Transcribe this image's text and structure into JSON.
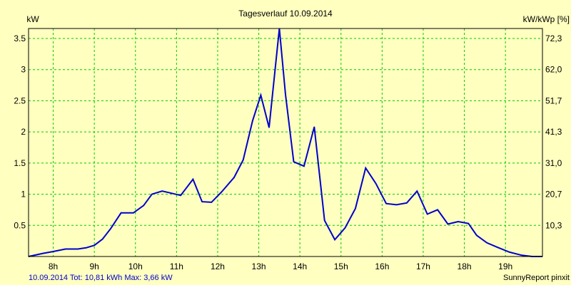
{
  "chart_data": {
    "type": "line",
    "title": "Tagesverlauf 10.09.2014",
    "ylabel": "kW",
    "y2label": "kW/kWp [%]",
    "xlim": [
      7.4,
      19.9
    ],
    "ylim": [
      0,
      3.66
    ],
    "x_ticks": [
      {
        "value": 8,
        "label": "8h"
      },
      {
        "value": 9,
        "label": "9h"
      },
      {
        "value": 10,
        "label": "10h"
      },
      {
        "value": 11,
        "label": "11h"
      },
      {
        "value": 12,
        "label": "12h"
      },
      {
        "value": 13,
        "label": "13h"
      },
      {
        "value": 14,
        "label": "14h"
      },
      {
        "value": 15,
        "label": "15h"
      },
      {
        "value": 16,
        "label": "16h"
      },
      {
        "value": 17,
        "label": "17h"
      },
      {
        "value": 18,
        "label": "18h"
      },
      {
        "value": 19,
        "label": "19h"
      }
    ],
    "y_ticks": [
      {
        "value": 0.5,
        "label": "0.5"
      },
      {
        "value": 1,
        "label": "1"
      },
      {
        "value": 1.5,
        "label": "1.5"
      },
      {
        "value": 2,
        "label": "2"
      },
      {
        "value": 2.5,
        "label": "2.5"
      },
      {
        "value": 3,
        "label": "3"
      },
      {
        "value": 3.5,
        "label": "3.5"
      }
    ],
    "y2_ticks": [
      {
        "value": 0.5,
        "label": "10,3"
      },
      {
        "value": 1,
        "label": "20,7"
      },
      {
        "value": 1.5,
        "label": "31,0"
      },
      {
        "value": 2,
        "label": "41,3"
      },
      {
        "value": 2.5,
        "label": "51,7"
      },
      {
        "value": 3,
        "label": "62,0"
      },
      {
        "value": 3.5,
        "label": "72,3"
      }
    ],
    "grid": true,
    "series": [
      {
        "color": "#0000cc",
        "x": [
          7.4,
          7.75,
          8.0,
          8.3,
          8.6,
          8.8,
          9.0,
          9.2,
          9.4,
          9.65,
          9.95,
          10.2,
          10.4,
          10.65,
          10.85,
          11.1,
          11.4,
          11.62,
          11.85,
          12.1,
          12.4,
          12.62,
          12.85,
          13.05,
          13.25,
          13.5,
          13.65,
          13.85,
          14.1,
          14.35,
          14.6,
          14.85,
          15.1,
          15.35,
          15.6,
          15.85,
          16.1,
          16.35,
          16.6,
          16.85,
          17.1,
          17.35,
          17.6,
          17.85,
          18.1,
          18.3,
          18.55,
          18.8,
          19.1,
          19.4,
          19.65,
          19.9
        ],
        "values": [
          0.0,
          0.05,
          0.08,
          0.12,
          0.12,
          0.14,
          0.18,
          0.28,
          0.45,
          0.7,
          0.7,
          0.82,
          1.0,
          1.05,
          1.02,
          0.98,
          1.24,
          0.88,
          0.87,
          1.04,
          1.27,
          1.55,
          2.18,
          2.59,
          2.07,
          3.66,
          2.6,
          1.52,
          1.45,
          2.08,
          0.58,
          0.27,
          0.46,
          0.77,
          1.42,
          1.17,
          0.85,
          0.83,
          0.86,
          1.05,
          0.68,
          0.75,
          0.52,
          0.56,
          0.53,
          0.34,
          0.22,
          0.15,
          0.07,
          0.02,
          0.0,
          0.0
        ]
      }
    ]
  },
  "footer": {
    "left": "10.09.2014 Tot: 10,81 kWh Max: 3,66 kW",
    "right": "SunnyReport pinxit"
  }
}
